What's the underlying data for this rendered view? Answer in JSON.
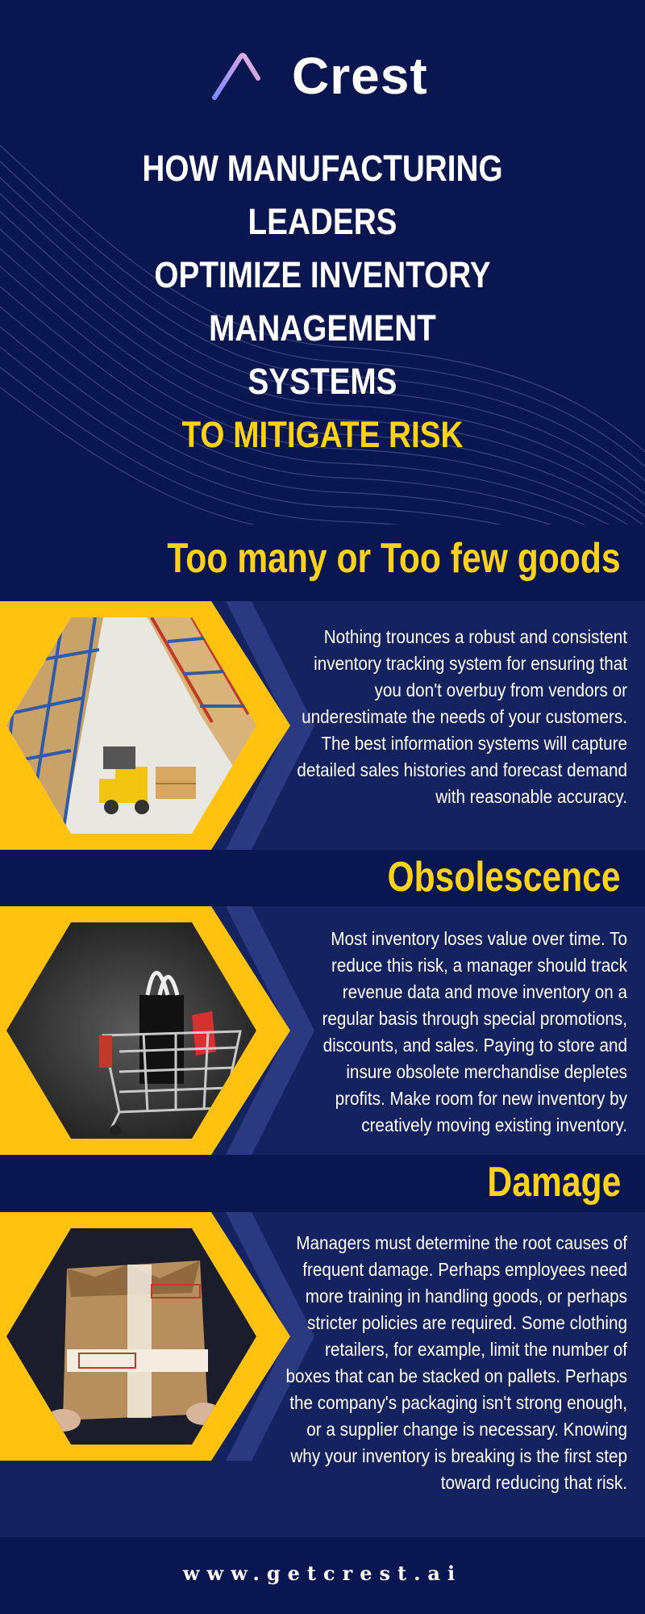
{
  "brand": {
    "name": "Crest",
    "logo_icon": "triangle-logo-icon"
  },
  "headline": {
    "lines": [
      "HOW MANUFACTURING LEADERS",
      "OPTIMIZE INVENTORY MANAGEMENT",
      "SYSTEMS"
    ],
    "accent": "TO MITIGATE RISK"
  },
  "sections": [
    {
      "title": "Too many or Too few goods",
      "image": "warehouse-forklift-photo",
      "body": "Nothing trounces a robust and consistent inventory tracking system for ensuring that you don't overbuy from vendors or underestimate the needs of your customers. The best information systems will capture detailed sales histories and forecast demand with reasonable accuracy."
    },
    {
      "title": "Obsolescence",
      "image": "shopping-cart-sale-photo",
      "body": "Most inventory loses value over time. To reduce this risk, a manager should track revenue data and move inventory on a regular basis through special promotions, discounts, and sales. Paying to store and insure obsolete merchandise depletes profits. Make room for new inventory by creatively moving existing inventory."
    },
    {
      "title": "Damage",
      "image": "damaged-fragile-box-photo",
      "body": "Managers must determine the root causes of frequent damage. Perhaps employees need more training in handling goods, or perhaps stricter policies are required. Some clothing retailers, for example, limit the number of boxes that can be stacked on pallets. Perhaps the company's packaging isn't strong enough, or a supplier change is necessary. Knowing why your inventory is breaking is the first step toward reducing that risk."
    }
  ],
  "footer": {
    "url": "www.getcrest.ai"
  },
  "colors": {
    "navy": "#0a1650",
    "band": "#142260",
    "yellow": "#ffd21a",
    "white": "#ffffff"
  }
}
